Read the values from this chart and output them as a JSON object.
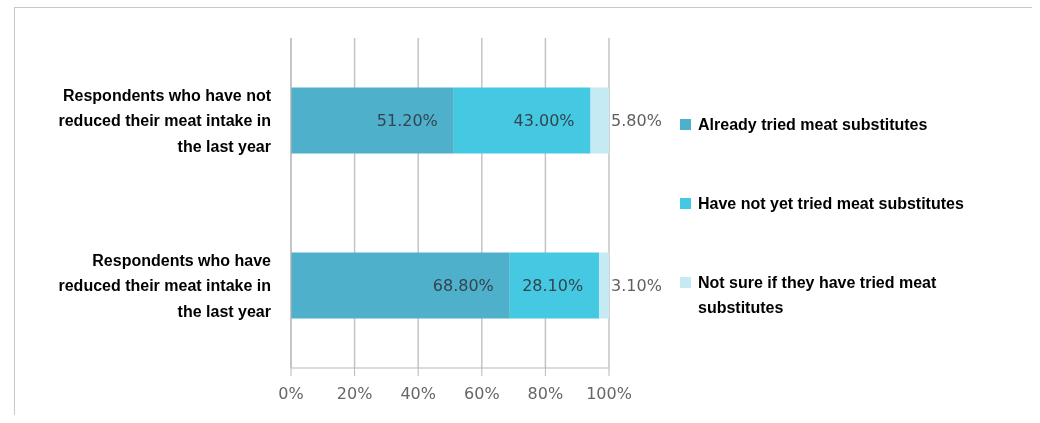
{
  "chart_data": {
    "type": "bar",
    "orientation": "horizontal",
    "stacked": true,
    "categories": [
      "Respondents who have not reduced their meat intake in the last year",
      "Respondents who have reduced their meat intake in the last year"
    ],
    "series": [
      {
        "name": "Already tried meat substitutes",
        "color": "#4fb0cb",
        "values": [
          51.2,
          68.8
        ],
        "value_labels": [
          "51.20%",
          "68.80%"
        ]
      },
      {
        "name": "Have not yet tried meat substitutes",
        "color": "#45c8e2",
        "values": [
          43.0,
          28.1
        ],
        "value_labels": [
          "43.00%",
          "28.10%"
        ]
      },
      {
        "name": "Not sure if they have tried meat substitutes",
        "color": "#c6eaf4",
        "values": [
          5.8,
          3.1
        ],
        "value_labels": [
          "5.80%",
          "3.10%"
        ]
      }
    ],
    "xlim": [
      0,
      100
    ],
    "xticks": [
      {
        "value": 0,
        "label": "0%"
      },
      {
        "value": 20,
        "label": "20%"
      },
      {
        "value": 40,
        "label": "40%"
      },
      {
        "value": 60,
        "label": "60%"
      },
      {
        "value": 80,
        "label": "80%"
      },
      {
        "value": 100,
        "label": "100%"
      }
    ],
    "grid": "x",
    "legend": "right"
  }
}
